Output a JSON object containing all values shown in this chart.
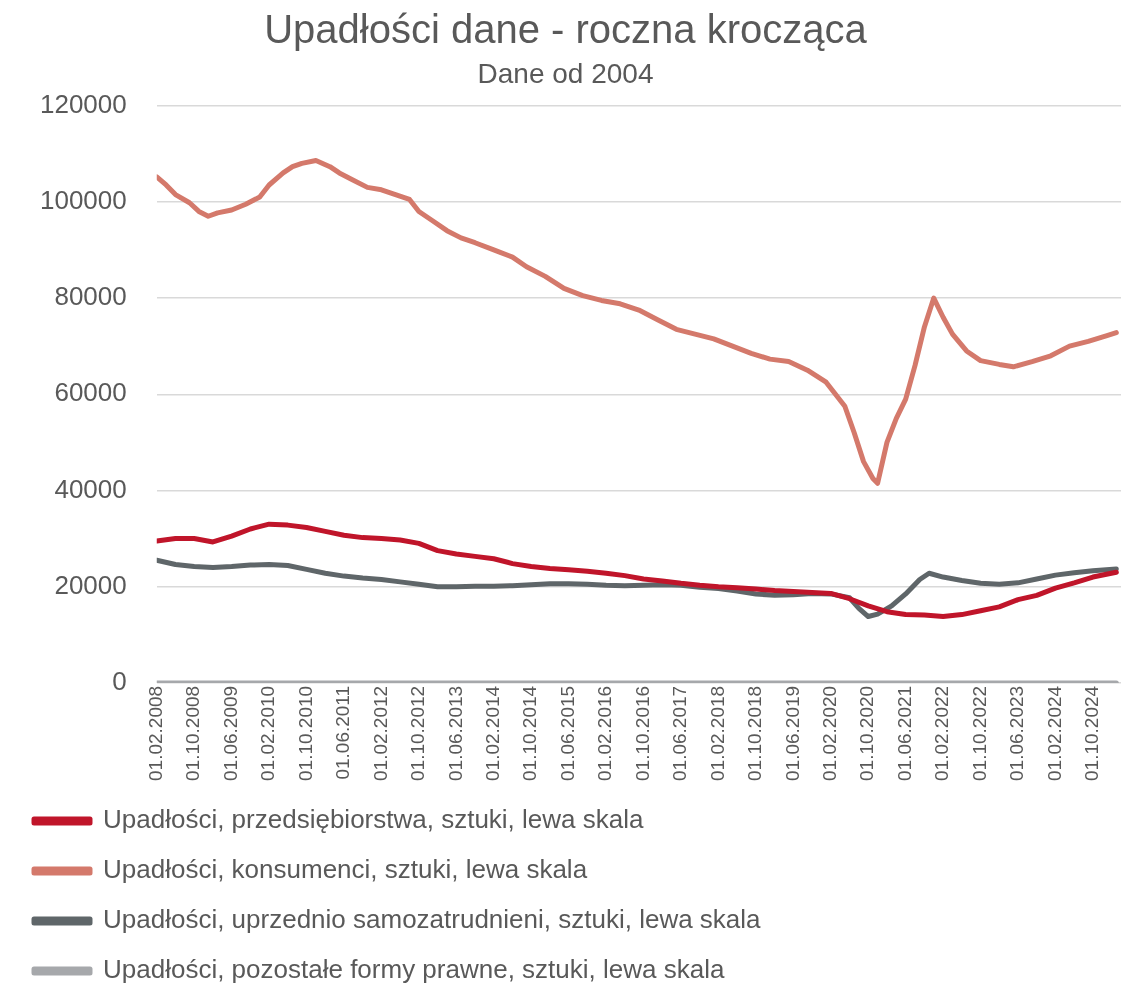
{
  "chart_data": {
    "type": "line",
    "title": "Upadłości dane - roczna krocząca",
    "subtitle": "Dane od 2004",
    "xlim": [
      "2008-02",
      "2025-04"
    ],
    "xticks": [
      {
        "value": "2008-02",
        "label": "01.02.2008"
      },
      {
        "value": "2008-10",
        "label": "01.10.2008"
      },
      {
        "value": "2009-06",
        "label": "01.06.2009"
      },
      {
        "value": "2010-02",
        "label": "01.02.2010"
      },
      {
        "value": "2010-10",
        "label": "01.10.2010"
      },
      {
        "value": "2011-06",
        "label": "01.06.2011"
      },
      {
        "value": "2012-02",
        "label": "01.02.2012"
      },
      {
        "value": "2012-10",
        "label": "01.10.2012"
      },
      {
        "value": "2013-06",
        "label": "01.06.2013"
      },
      {
        "value": "2014-02",
        "label": "01.02.2014"
      },
      {
        "value": "2014-10",
        "label": "01.10.2014"
      },
      {
        "value": "2015-06",
        "label": "01.06.2015"
      },
      {
        "value": "2016-02",
        "label": "01.02.2016"
      },
      {
        "value": "2016-10",
        "label": "01.10.2016"
      },
      {
        "value": "2017-06",
        "label": "01.06.2017"
      },
      {
        "value": "2018-02",
        "label": "01.02.2018"
      },
      {
        "value": "2018-10",
        "label": "01.10.2018"
      },
      {
        "value": "2019-06",
        "label": "01.06.2019"
      },
      {
        "value": "2020-02",
        "label": "01.02.2020"
      },
      {
        "value": "2020-10",
        "label": "01.10.2020"
      },
      {
        "value": "2021-06",
        "label": "01.06.2021"
      },
      {
        "value": "2022-02",
        "label": "01.02.2022"
      },
      {
        "value": "2022-10",
        "label": "01.10.2022"
      },
      {
        "value": "2023-06",
        "label": "01.06.2023"
      },
      {
        "value": "2024-02",
        "label": "01.02.2024"
      },
      {
        "value": "2024-10",
        "label": "01.10.2024"
      }
    ],
    "ylim": [
      0,
      120000
    ],
    "yticks": [
      0,
      20000,
      40000,
      60000,
      80000,
      100000,
      120000
    ],
    "grid": "y",
    "legend": "bottom",
    "marker": "none",
    "line_style": "solid",
    "series": [
      {
        "name": "Upadłości, przedsiębiorstwa, sztuki, lewa skala",
        "color": "#c0152a",
        "x": [
          "2008-02",
          "2008-06",
          "2008-10",
          "2009-02",
          "2009-06",
          "2009-10",
          "2010-02",
          "2010-06",
          "2010-10",
          "2011-02",
          "2011-06",
          "2011-10",
          "2012-02",
          "2012-06",
          "2012-10",
          "2013-02",
          "2013-06",
          "2013-10",
          "2014-02",
          "2014-06",
          "2014-10",
          "2015-02",
          "2015-06",
          "2015-10",
          "2016-02",
          "2016-06",
          "2016-10",
          "2017-02",
          "2017-06",
          "2017-10",
          "2018-02",
          "2018-06",
          "2018-10",
          "2019-02",
          "2019-06",
          "2019-10",
          "2020-02",
          "2020-06",
          "2020-10",
          "2021-02",
          "2021-06",
          "2021-10",
          "2022-02",
          "2022-06",
          "2022-10",
          "2023-02",
          "2023-06",
          "2023-10",
          "2024-02",
          "2024-06",
          "2024-10",
          "2025-03"
        ],
        "values": [
          29500,
          30000,
          30000,
          29300,
          30500,
          32000,
          33000,
          32800,
          32300,
          31500,
          30700,
          30200,
          30000,
          29700,
          29000,
          27500,
          26800,
          26300,
          25800,
          24800,
          24200,
          23800,
          23500,
          23200,
          22800,
          22300,
          21600,
          21200,
          20700,
          20300,
          20000,
          19800,
          19500,
          19200,
          19000,
          18800,
          18600,
          17500,
          16000,
          14800,
          14200,
          14100,
          13800,
          14200,
          15000,
          15800,
          17300,
          18200,
          19700,
          20800,
          22000,
          23000
        ]
      },
      {
        "name": "Upadłości, konsumenci, sztuki, lewa skala",
        "color": "#d4796b",
        "x": [
          "2008-02",
          "2008-04",
          "2008-06",
          "2008-09",
          "2008-11",
          "2009-01",
          "2009-03",
          "2009-06",
          "2009-09",
          "2009-12",
          "2010-02",
          "2010-05",
          "2010-07",
          "2010-09",
          "2010-12",
          "2011-03",
          "2011-05",
          "2011-08",
          "2011-11",
          "2012-02",
          "2012-05",
          "2012-08",
          "2012-10",
          "2013-01",
          "2013-04",
          "2013-07",
          "2013-10",
          "2014-02",
          "2014-06",
          "2014-09",
          "2015-01",
          "2015-05",
          "2015-09",
          "2016-01",
          "2016-05",
          "2016-09",
          "2017-01",
          "2017-05",
          "2017-09",
          "2018-01",
          "2018-05",
          "2018-09",
          "2019-01",
          "2019-05",
          "2019-09",
          "2020-01",
          "2020-03",
          "2020-05",
          "2020-07",
          "2020-09",
          "2020-11",
          "2020-12",
          "2021-02",
          "2021-04",
          "2021-06",
          "2021-08",
          "2021-10",
          "2021-12",
          "2022-02",
          "2022-04",
          "2022-07",
          "2022-10",
          "2023-02",
          "2023-05",
          "2023-09",
          "2024-01",
          "2024-05",
          "2024-09",
          "2025-01",
          "2025-03"
        ],
        "values": [
          105200,
          103500,
          101500,
          99800,
          98000,
          97000,
          97700,
          98300,
          99500,
          101000,
          103500,
          106000,
          107300,
          108000,
          108600,
          107300,
          106000,
          104500,
          103000,
          102500,
          101500,
          100500,
          98000,
          96000,
          94000,
          92500,
          91500,
          90000,
          88500,
          86500,
          84500,
          82000,
          80500,
          79500,
          78800,
          77500,
          75500,
          73500,
          72500,
          71500,
          70000,
          68500,
          67300,
          66800,
          65000,
          62500,
          60000,
          57500,
          52000,
          46000,
          42500,
          41500,
          50000,
          55000,
          59000,
          66000,
          74000,
          80000,
          76000,
          72500,
          69000,
          67000,
          66200,
          65700,
          66800,
          68000,
          70000,
          71000,
          72200,
          72800
        ]
      },
      {
        "name": "Upadłości, uprzednio samozatrudnieni, sztuki, lewa skala",
        "color": "#5f6669",
        "x": [
          "2008-02",
          "2008-06",
          "2008-10",
          "2009-02",
          "2009-06",
          "2009-10",
          "2010-02",
          "2010-06",
          "2010-10",
          "2011-02",
          "2011-06",
          "2011-10",
          "2012-02",
          "2012-06",
          "2012-10",
          "2013-02",
          "2013-06",
          "2013-10",
          "2014-02",
          "2014-06",
          "2014-10",
          "2015-02",
          "2015-06",
          "2015-10",
          "2016-02",
          "2016-06",
          "2016-10",
          "2017-02",
          "2017-06",
          "2017-10",
          "2018-02",
          "2018-06",
          "2018-10",
          "2019-02",
          "2019-06",
          "2019-10",
          "2020-02",
          "2020-06",
          "2020-08",
          "2020-10",
          "2020-12",
          "2021-03",
          "2021-06",
          "2021-09",
          "2021-11",
          "2022-02",
          "2022-06",
          "2022-10",
          "2023-02",
          "2023-06",
          "2023-10",
          "2024-02",
          "2024-06",
          "2024-10",
          "2025-03"
        ],
        "values": [
          25500,
          24600,
          24200,
          24000,
          24200,
          24500,
          24600,
          24400,
          23600,
          22800,
          22200,
          21800,
          21500,
          21000,
          20500,
          20000,
          20000,
          20100,
          20100,
          20200,
          20400,
          20600,
          20600,
          20500,
          20300,
          20200,
          20300,
          20400,
          20300,
          19900,
          19600,
          19100,
          18500,
          18200,
          18300,
          18600,
          18500,
          17700,
          15500,
          13800,
          14300,
          16000,
          18500,
          21500,
          22800,
          22000,
          21300,
          20700,
          20500,
          20800,
          21600,
          22400,
          22900,
          23300,
          23700
        ]
      },
      {
        "name": "Upadłości, pozostałe formy prawne, sztuki, lewa skala",
        "color": "#a6a8ab",
        "x": [
          "2008-02",
          "2012-02",
          "2016-02",
          "2020-02",
          "2025-03"
        ],
        "values": [
          0,
          0,
          0,
          0,
          0
        ]
      }
    ]
  }
}
